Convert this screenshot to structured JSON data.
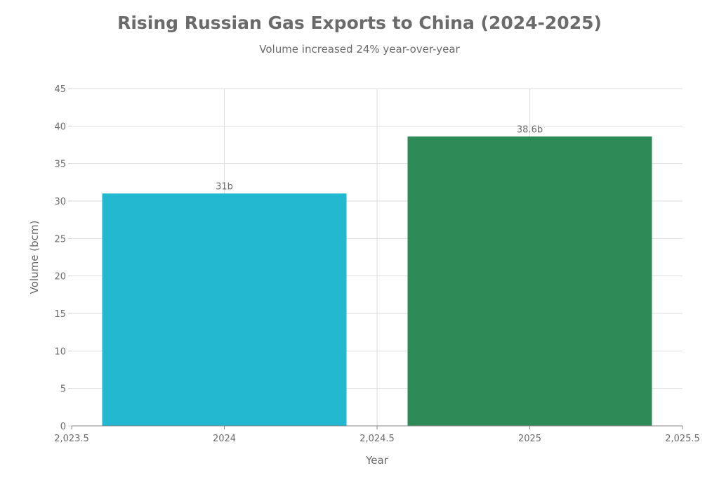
{
  "chart_data": {
    "type": "bar",
    "title": "Rising Russian Gas Exports to China (2024-2025)",
    "subtitle": "Volume increased 24% year-over-year",
    "xlabel": "Year",
    "ylabel": "Volume (bcm)",
    "xlim": [
      2023.5,
      2025.5
    ],
    "ylim": [
      0,
      45
    ],
    "x_ticks": [
      2023.5,
      2024,
      2024.5,
      2025,
      2025.5
    ],
    "x_tick_labels": [
      "2,023.5",
      "2024",
      "2,024.5",
      "2025",
      "2,025.5"
    ],
    "y_ticks": [
      0,
      5,
      10,
      15,
      20,
      25,
      30,
      35,
      40,
      45
    ],
    "y_tick_labels": [
      "0",
      "5",
      "10",
      "15",
      "20",
      "25",
      "30",
      "35",
      "40",
      "45"
    ],
    "grid": true,
    "bar_width": 0.8,
    "bars": [
      {
        "x": 2024,
        "value": 31,
        "label": "31b",
        "color": "#22b8cf"
      },
      {
        "x": 2025,
        "value": 38.6,
        "label": "38.6b",
        "color": "#2e8b57"
      }
    ]
  }
}
